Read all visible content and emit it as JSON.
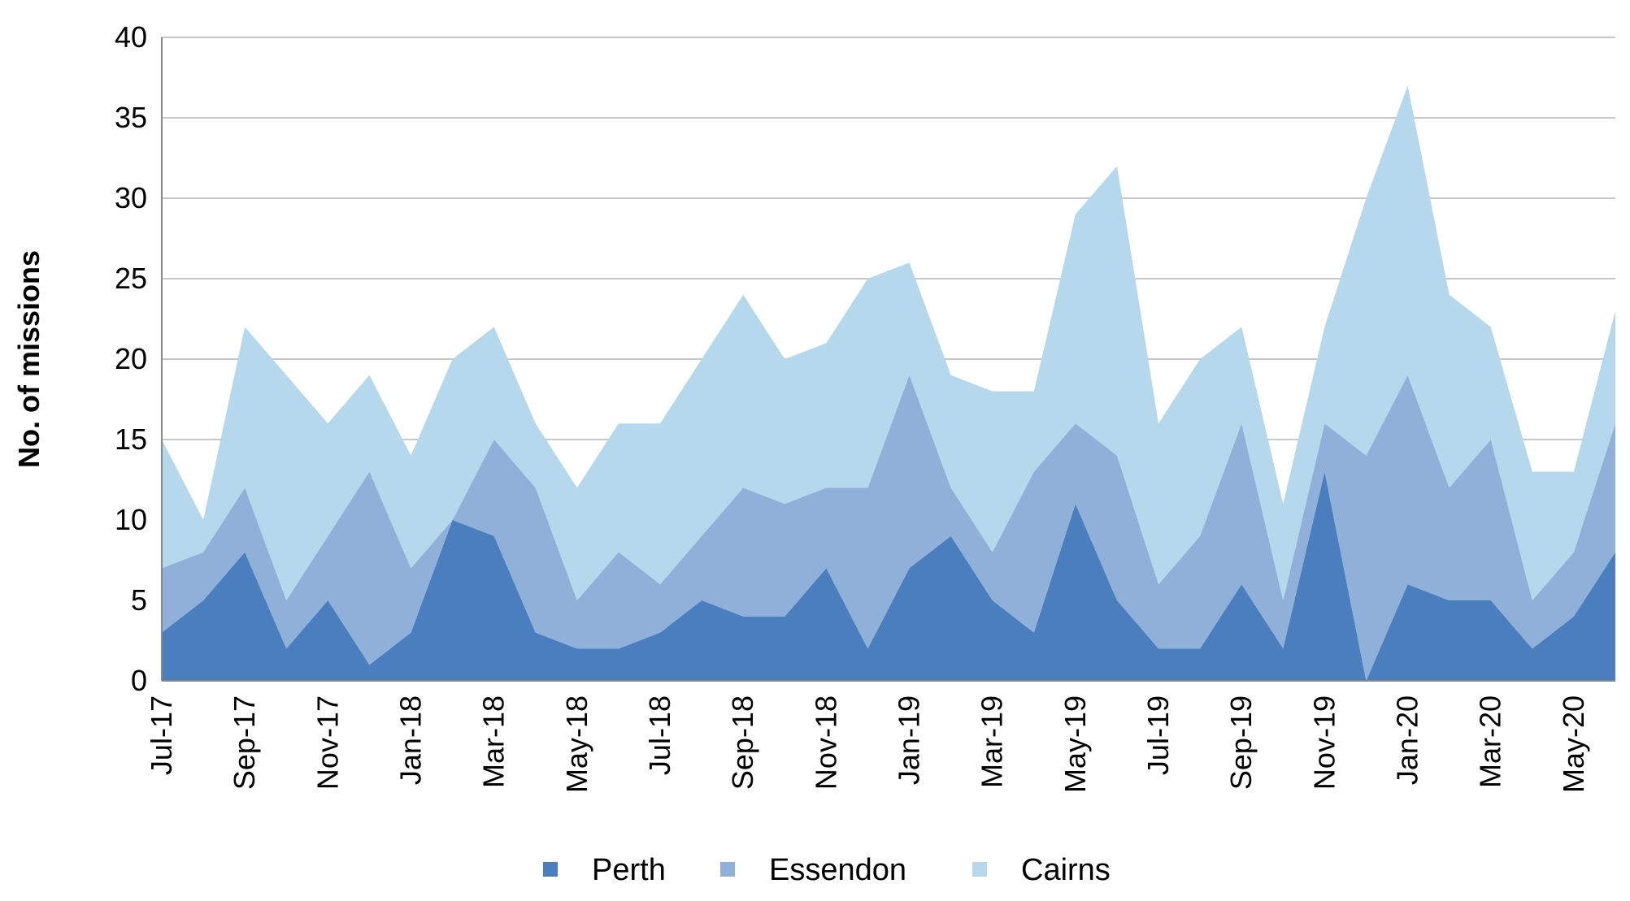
{
  "chart_data": {
    "type": "area",
    "stacked": true,
    "title": "",
    "xlabel": "",
    "ylabel": "No. of missions",
    "ylim": [
      0,
      40
    ],
    "yticks": [
      0,
      5,
      10,
      15,
      20,
      25,
      30,
      35,
      40
    ],
    "grid": true,
    "legend_position": "bottom",
    "x": [
      "Jul-17",
      "Aug-17",
      "Sep-17",
      "Oct-17",
      "Nov-17",
      "Dec-17",
      "Jan-18",
      "Feb-18",
      "Mar-18",
      "Apr-18",
      "May-18",
      "Jun-18",
      "Jul-18",
      "Aug-18",
      "Sep-18",
      "Oct-18",
      "Nov-18",
      "Dec-18",
      "Jan-19",
      "Feb-19",
      "Mar-19",
      "Apr-19",
      "May-19",
      "Jun-19",
      "Jul-19",
      "Aug-19",
      "Sep-19",
      "Oct-19",
      "Nov-19",
      "Dec-19",
      "Jan-20",
      "Feb-20",
      "Mar-20",
      "Apr-20",
      "May-20",
      "Jun-20"
    ],
    "x_tick_labels": [
      "Jul-17",
      "Sep-17",
      "Nov-17",
      "Jan-18",
      "Mar-18",
      "May-18",
      "Jul-18",
      "Sep-18",
      "Nov-18",
      "Jan-19",
      "Mar-19",
      "May-19",
      "Jul-19",
      "Sep-19",
      "Nov-19",
      "Jan-20",
      "Mar-20",
      "May-20"
    ],
    "series": [
      {
        "name": "Perth",
        "color": "#4a7ebf",
        "values": [
          3,
          5,
          8,
          2,
          5,
          1,
          3,
          10,
          9,
          3,
          2,
          2,
          3,
          5,
          4,
          4,
          7,
          2,
          7,
          9,
          5,
          3,
          11,
          5,
          2,
          2,
          6,
          2,
          13,
          0,
          6,
          5,
          5,
          2,
          4,
          8
        ]
      },
      {
        "name": "Essendon",
        "color": "#8fb0d9",
        "values": [
          4,
          3,
          4,
          3,
          4,
          12,
          4,
          0,
          6,
          9,
          3,
          6,
          3,
          4,
          8,
          7,
          5,
          10,
          12,
          3,
          3,
          10,
          5,
          9,
          4,
          7,
          10,
          3,
          3,
          14,
          13,
          7,
          10,
          3,
          4,
          8
        ]
      },
      {
        "name": "Cairns",
        "color": "#b5d8ec",
        "values": [
          8,
          2,
          10,
          14,
          7,
          6,
          7,
          10,
          7,
          4,
          7,
          8,
          10,
          11,
          12,
          9,
          9,
          13,
          7,
          7,
          10,
          5,
          13,
          18,
          10,
          11,
          6,
          6,
          6,
          16,
          18,
          12,
          7,
          8,
          5,
          7
        ]
      }
    ]
  }
}
